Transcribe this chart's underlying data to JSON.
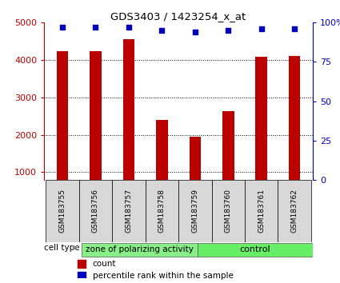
{
  "title": "GDS3403 / 1423254_x_at",
  "samples": [
    "GSM183755",
    "GSM183756",
    "GSM183757",
    "GSM183758",
    "GSM183759",
    "GSM183760",
    "GSM183761",
    "GSM183762"
  ],
  "counts": [
    4230,
    4230,
    4560,
    2390,
    1950,
    2630,
    4080,
    4100
  ],
  "percentiles": [
    97,
    97,
    97,
    95,
    94,
    95,
    96,
    96
  ],
  "bar_color": "#bb0000",
  "dot_color": "#0000bb",
  "ylim_left": [
    800,
    5000
  ],
  "ylim_right": [
    0,
    100
  ],
  "yticks_left": [
    1000,
    2000,
    3000,
    4000,
    5000
  ],
  "yticks_right": [
    0,
    25,
    50,
    75,
    100
  ],
  "group_labels": [
    "zone of polarizing activity",
    "control"
  ],
  "group_split": 4,
  "group_color1": "#88ee88",
  "group_color2": "#66ee66",
  "cell_type_label": "cell type",
  "legend_count_label": "count",
  "legend_pct_label": "percentile rank within the sample",
  "plot_bg": "#ffffff",
  "sample_box_bg": "#d8d8d8",
  "bar_bottom": 800,
  "bar_width": 0.35
}
